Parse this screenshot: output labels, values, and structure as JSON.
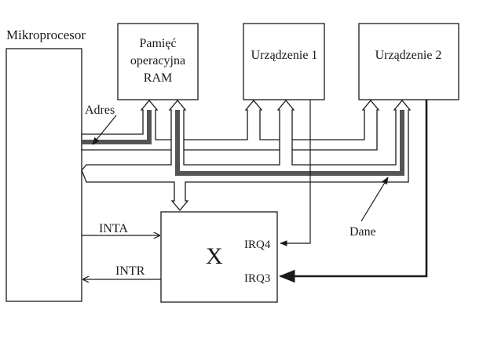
{
  "labels": {
    "cpu": "Mikroprocesor",
    "ram_line1": "Pamięć",
    "ram_line2": "operacyjna",
    "ram_line3": "RAM",
    "dev1": "Urządzenie 1",
    "dev2": "Urządzenie 2",
    "adres": "Adres",
    "dane": "Dane",
    "inta": "INTA",
    "intr": "INTR",
    "x": "X",
    "irq4": "IRQ4",
    "irq3": "IRQ3"
  },
  "colors": {
    "line": "#1a1a1a",
    "highlight": "#555555",
    "background": "#ffffff"
  }
}
